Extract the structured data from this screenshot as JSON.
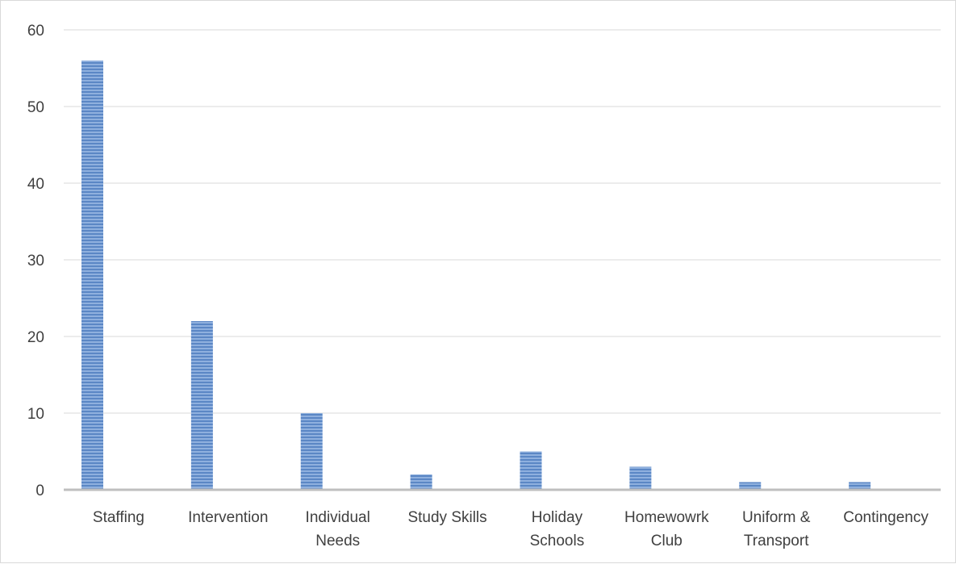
{
  "chart_data": {
    "type": "bar",
    "categories": [
      [
        "Staffing"
      ],
      [
        "Intervention"
      ],
      [
        "Individual",
        "Needs"
      ],
      [
        "Study Skills"
      ],
      [
        "Holiday",
        "Schools"
      ],
      [
        "Homewowrk",
        "Club"
      ],
      [
        "Uniform &",
        "Transport"
      ],
      [
        "Contingency"
      ]
    ],
    "values": [
      56,
      22,
      10,
      2,
      5,
      3,
      1,
      1
    ],
    "ylim": [
      0,
      60
    ],
    "yticks": [
      0,
      10,
      20,
      30,
      40,
      50,
      60
    ],
    "grid": true,
    "bar_color": "#5b87c5",
    "stripe_color": "#8fb0de",
    "axis_color": "#bfbfbf",
    "grid_color": "#d9d9d9",
    "text_color": "#404040"
  }
}
